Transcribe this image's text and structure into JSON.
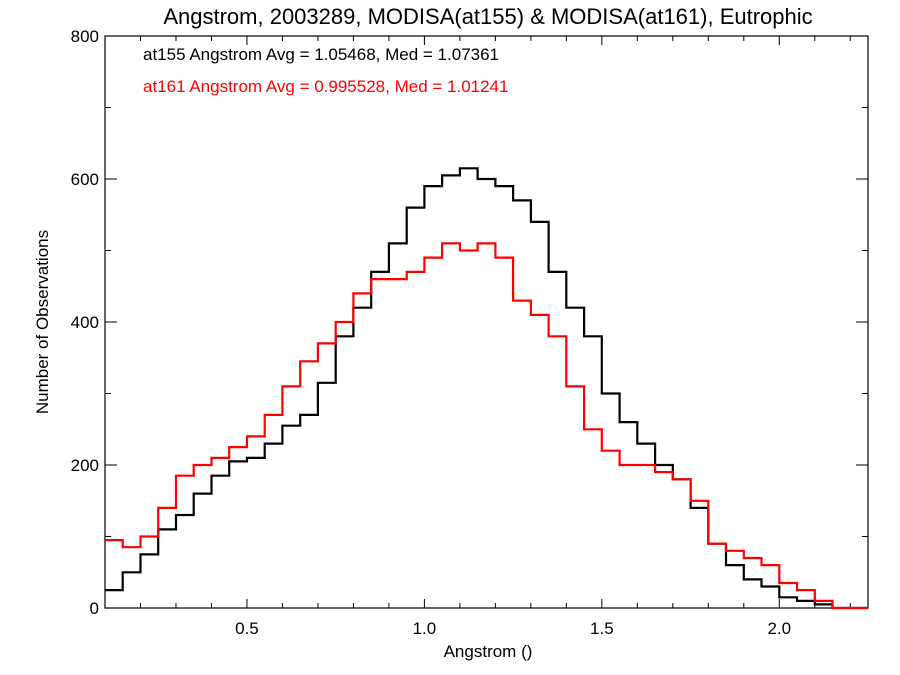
{
  "chart_data": {
    "type": "histogram",
    "title": "Angstrom, 2003289, MODISA(at155) & MODISA(at161), Eutrophic",
    "xlabel": "Angstrom ()",
    "ylabel": "Number of Observations",
    "xlim": [
      0.1,
      2.25
    ],
    "ylim": [
      0,
      800
    ],
    "x_ticks": [
      0.5,
      1.0,
      1.5,
      2.0
    ],
    "x_tick_labels": [
      "0.5",
      "1.0",
      "1.5",
      "2.0"
    ],
    "y_ticks": [
      0,
      200,
      400,
      600,
      800
    ],
    "y_tick_labels": [
      "0",
      "200",
      "400",
      "600",
      "800"
    ],
    "grid": false,
    "annotations": [
      {
        "text": "at155 Angstrom Avg = 1.05468, Med = 1.07361",
        "color": "#000000"
      },
      {
        "text": "at161 Angstrom Avg = 0.995528, Med = 1.01241",
        "color": "#ff0000"
      }
    ],
    "series": [
      {
        "color": "#000000",
        "x": [
          0.1,
          0.15,
          0.2,
          0.25,
          0.3,
          0.35,
          0.4,
          0.45,
          0.5,
          0.55,
          0.6,
          0.65,
          0.7,
          0.75,
          0.8,
          0.85,
          0.9,
          0.95,
          1.0,
          1.05,
          1.1,
          1.15,
          1.2,
          1.25,
          1.3,
          1.35,
          1.4,
          1.45,
          1.5,
          1.55,
          1.6,
          1.65,
          1.7,
          1.75,
          1.8,
          1.85,
          1.9,
          1.95,
          2.0,
          2.05,
          2.1,
          2.15,
          2.2,
          2.25
        ],
        "y": [
          25,
          50,
          75,
          110,
          130,
          160,
          185,
          205,
          210,
          230,
          255,
          270,
          315,
          380,
          420,
          470,
          510,
          560,
          590,
          605,
          615,
          600,
          590,
          570,
          540,
          470,
          420,
          380,
          300,
          260,
          230,
          200,
          180,
          140,
          90,
          60,
          40,
          30,
          15,
          10,
          5,
          0,
          0,
          0
        ]
      },
      {
        "color": "#ff0000",
        "x": [
          0.1,
          0.15,
          0.2,
          0.25,
          0.3,
          0.35,
          0.4,
          0.45,
          0.5,
          0.55,
          0.6,
          0.65,
          0.7,
          0.75,
          0.8,
          0.85,
          0.9,
          0.95,
          1.0,
          1.05,
          1.1,
          1.15,
          1.2,
          1.25,
          1.3,
          1.35,
          1.4,
          1.45,
          1.5,
          1.55,
          1.6,
          1.65,
          1.7,
          1.75,
          1.8,
          1.85,
          1.9,
          1.95,
          2.0,
          2.05,
          2.1,
          2.15,
          2.2,
          2.25
        ],
        "y": [
          95,
          85,
          100,
          140,
          185,
          200,
          210,
          225,
          240,
          270,
          310,
          345,
          370,
          400,
          440,
          460,
          460,
          470,
          490,
          510,
          500,
          510,
          490,
          430,
          410,
          380,
          310,
          250,
          220,
          200,
          200,
          190,
          180,
          150,
          90,
          80,
          70,
          60,
          35,
          25,
          10,
          0,
          0,
          0
        ]
      }
    ]
  }
}
